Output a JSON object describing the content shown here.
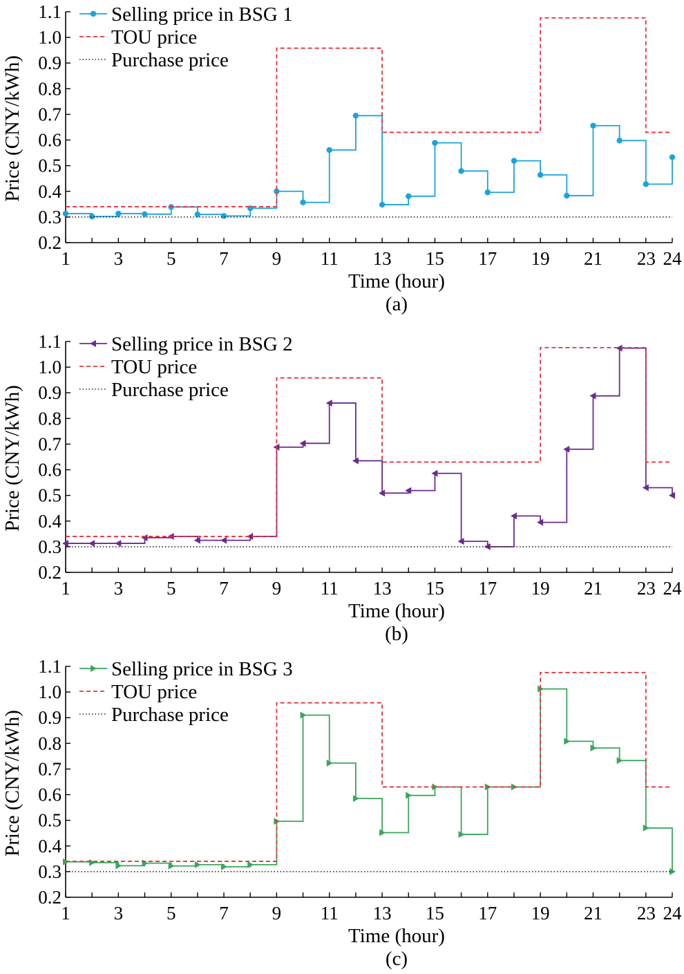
{
  "chart_data": [
    {
      "type": "line",
      "caption": "(a)",
      "xlabel": "Time (hour)",
      "ylabel": "Price (CNY/kWh)",
      "xlim": [
        1,
        24
      ],
      "ylim": [
        0.2,
        1.1
      ],
      "x_ticks": [
        1,
        3,
        5,
        7,
        9,
        11,
        13,
        15,
        17,
        19,
        21,
        23,
        24
      ],
      "y_ticks": [
        "0.2",
        "0.3",
        "0.4",
        "0.5",
        "0.6",
        "0.7",
        "0.8",
        "0.9",
        "1.0",
        "1.1"
      ],
      "legend_position": "top-left",
      "series": [
        {
          "name": "Selling price in BSG 1",
          "style": "step-solid",
          "marker": "circle",
          "color": "#1aa3dc",
          "x": [
            1,
            2,
            3,
            4,
            5,
            6,
            7,
            8,
            9,
            10,
            11,
            12,
            13,
            14,
            15,
            16,
            17,
            18,
            19,
            20,
            21,
            22,
            23,
            24
          ],
          "values": [
            0.313,
            0.302,
            0.313,
            0.311,
            0.339,
            0.31,
            0.304,
            0.334,
            0.4,
            0.357,
            0.561,
            0.695,
            0.348,
            0.381,
            0.589,
            0.479,
            0.396,
            0.519,
            0.464,
            0.383,
            0.656,
            0.598,
            0.428,
            0.533
          ]
        },
        {
          "name": "TOU price",
          "style": "step-dashed",
          "color": "#e8303a",
          "x": [
            1,
            2,
            3,
            4,
            5,
            6,
            7,
            8,
            9,
            10,
            11,
            12,
            13,
            14,
            15,
            16,
            17,
            18,
            19,
            20,
            21,
            22,
            23,
            24
          ],
          "values": [
            0.34,
            0.34,
            0.34,
            0.34,
            0.34,
            0.34,
            0.34,
            0.34,
            0.958,
            0.958,
            0.958,
            0.958,
            0.63,
            0.63,
            0.63,
            0.63,
            0.63,
            0.63,
            1.076,
            1.076,
            1.076,
            1.076,
            0.63,
            0.63
          ]
        },
        {
          "name": "Purchase price",
          "style": "dotted",
          "color": "#222222",
          "x": [
            1,
            24
          ],
          "values": [
            0.3,
            0.3
          ]
        }
      ]
    },
    {
      "type": "line",
      "caption": "(b)",
      "xlabel": "Time (hour)",
      "ylabel": "Price (CNY/kWh)",
      "xlim": [
        1,
        24
      ],
      "ylim": [
        0.2,
        1.1
      ],
      "x_ticks": [
        1,
        3,
        5,
        7,
        9,
        11,
        13,
        15,
        17,
        19,
        21,
        23,
        24
      ],
      "y_ticks": [
        "0.2",
        "0.3",
        "0.4",
        "0.5",
        "0.6",
        "0.7",
        "0.8",
        "0.9",
        "1.0",
        "1.1"
      ],
      "legend_position": "top-left",
      "series": [
        {
          "name": "Selling price in BSG 2",
          "style": "step-solid",
          "marker": "triangle-left",
          "color": "#6a2c8e",
          "x": [
            1,
            2,
            3,
            4,
            5,
            6,
            7,
            8,
            9,
            10,
            11,
            12,
            13,
            14,
            15,
            16,
            17,
            18,
            19,
            20,
            21,
            22,
            23,
            24
          ],
          "values": [
            0.313,
            0.313,
            0.313,
            0.335,
            0.34,
            0.325,
            0.325,
            0.34,
            0.688,
            0.703,
            0.86,
            0.635,
            0.509,
            0.519,
            0.586,
            0.321,
            0.3,
            0.42,
            0.395,
            0.68,
            0.888,
            1.074,
            0.53,
            0.5
          ]
        },
        {
          "name": "TOU price",
          "style": "step-dashed",
          "color": "#e8303a",
          "x": [
            1,
            2,
            3,
            4,
            5,
            6,
            7,
            8,
            9,
            10,
            11,
            12,
            13,
            14,
            15,
            16,
            17,
            18,
            19,
            20,
            21,
            22,
            23,
            24
          ],
          "values": [
            0.34,
            0.34,
            0.34,
            0.34,
            0.34,
            0.34,
            0.34,
            0.34,
            0.958,
            0.958,
            0.958,
            0.958,
            0.63,
            0.63,
            0.63,
            0.63,
            0.63,
            0.63,
            1.076,
            1.076,
            1.076,
            1.076,
            0.63,
            0.63
          ]
        },
        {
          "name": "Purchase price",
          "style": "dotted",
          "color": "#222222",
          "x": [
            1,
            24
          ],
          "values": [
            0.3,
            0.3
          ]
        }
      ]
    },
    {
      "type": "line",
      "caption": "(c)",
      "xlabel": "Time (hour)",
      "ylabel": "Price (CNY/kWh)",
      "xlim": [
        1,
        24
      ],
      "ylim": [
        0.2,
        1.1
      ],
      "x_ticks": [
        1,
        3,
        5,
        7,
        9,
        11,
        13,
        15,
        17,
        19,
        21,
        23,
        24
      ],
      "y_ticks": [
        "0.2",
        "0.3",
        "0.4",
        "0.5",
        "0.6",
        "0.7",
        "0.8",
        "0.9",
        "1.0",
        "1.1"
      ],
      "legend_position": "top-left",
      "series": [
        {
          "name": "Selling price in BSG 3",
          "style": "step-solid",
          "marker": "triangle-right",
          "color": "#3aa65a",
          "x": [
            1,
            2,
            3,
            4,
            5,
            6,
            7,
            8,
            9,
            10,
            11,
            12,
            13,
            14,
            15,
            16,
            17,
            18,
            19,
            20,
            21,
            22,
            23,
            24
          ],
          "values": [
            0.338,
            0.335,
            0.323,
            0.333,
            0.322,
            0.327,
            0.319,
            0.327,
            0.496,
            0.91,
            0.723,
            0.585,
            0.452,
            0.597,
            0.63,
            0.445,
            0.63,
            0.63,
            1.012,
            0.808,
            0.782,
            0.733,
            0.47,
            0.3
          ]
        },
        {
          "name": "TOU price",
          "style": "step-dashed",
          "color": "#e8303a",
          "x": [
            1,
            2,
            3,
            4,
            5,
            6,
            7,
            8,
            9,
            10,
            11,
            12,
            13,
            14,
            15,
            16,
            17,
            18,
            19,
            20,
            21,
            22,
            23,
            24
          ],
          "values": [
            0.34,
            0.34,
            0.34,
            0.34,
            0.34,
            0.34,
            0.34,
            0.34,
            0.958,
            0.958,
            0.958,
            0.958,
            0.63,
            0.63,
            0.63,
            0.63,
            0.63,
            0.63,
            1.076,
            1.076,
            1.076,
            1.076,
            0.63,
            0.63
          ]
        },
        {
          "name": "Purchase price",
          "style": "dotted",
          "color": "#222222",
          "x": [
            1,
            24
          ],
          "values": [
            0.3,
            0.3
          ]
        }
      ]
    }
  ]
}
